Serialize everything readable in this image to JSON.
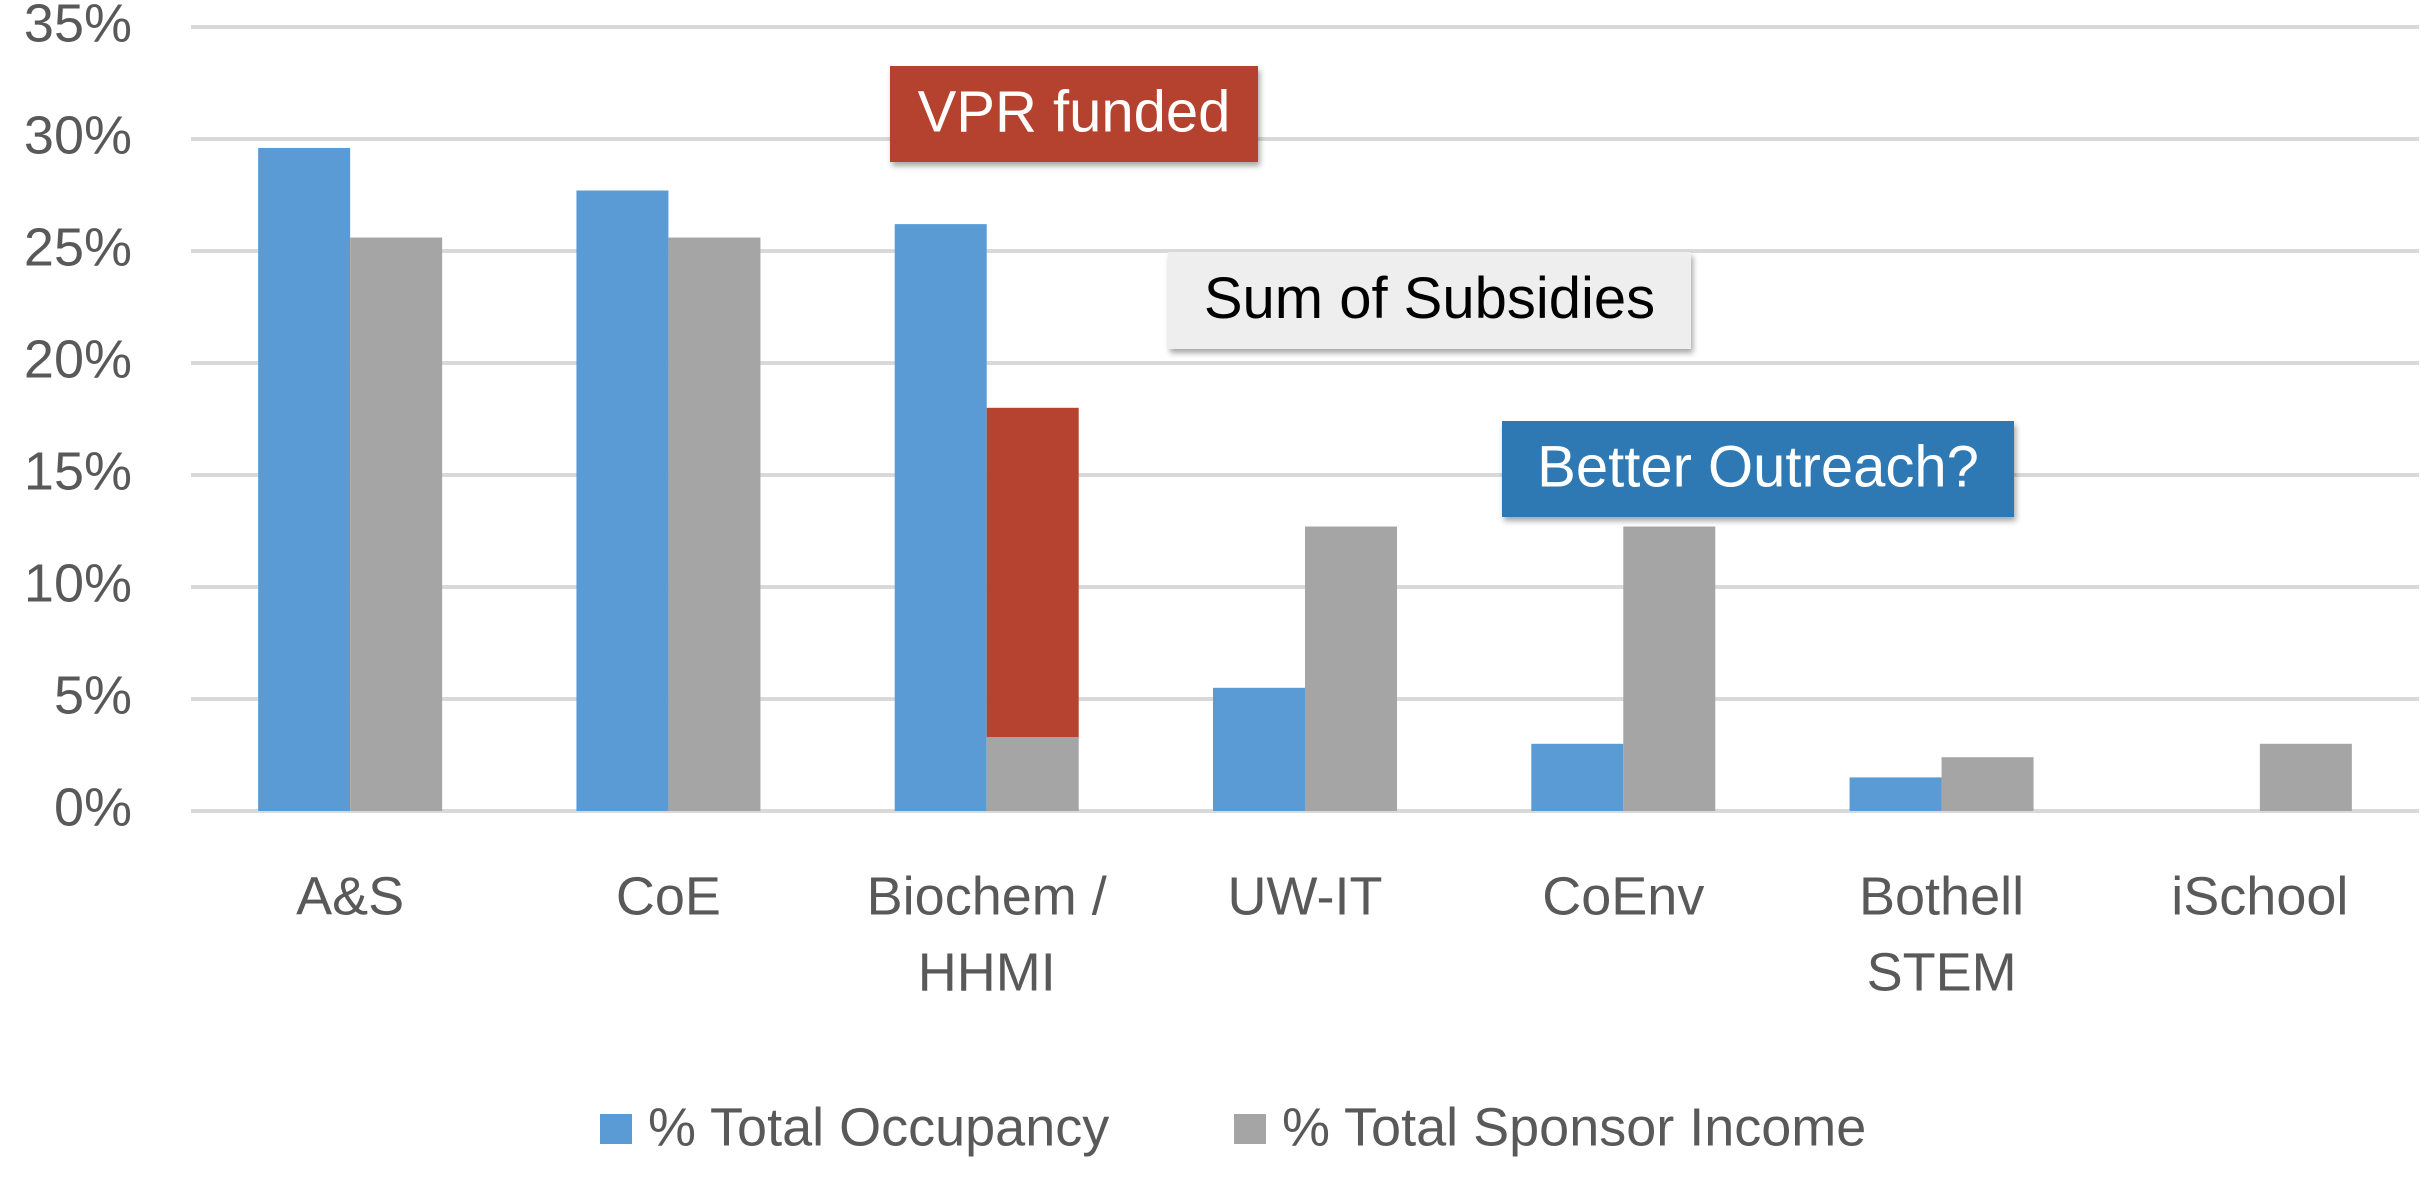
{
  "chart_data": {
    "type": "bar",
    "categories": [
      [
        "A&S"
      ],
      [
        "CoE"
      ],
      [
        "Biochem /",
        "HHMI"
      ],
      [
        "UW-IT"
      ],
      [
        "CoEnv"
      ],
      [
        "Bothell",
        "STEM"
      ],
      [
        "iSchool"
      ]
    ],
    "series": [
      {
        "name": "% Total Occupancy",
        "color": "#5b9bd5",
        "values": [
          29.6,
          27.7,
          26.2,
          5.5,
          3.0,
          1.5,
          null
        ]
      },
      {
        "name": "% Total Sponsor Income",
        "color": "#a5a5a5",
        "values": [
          25.6,
          25.6,
          3.3,
          12.7,
          12.7,
          2.4,
          3.0
        ]
      },
      {
        "color": "#b5432f",
        "stack_on": 1,
        "values": [
          null,
          null,
          14.7,
          null,
          null,
          null,
          null
        ]
      }
    ],
    "ylim": [
      0,
      35
    ],
    "yticks": [
      {
        "value": 0,
        "label": "0%"
      },
      {
        "value": 5,
        "label": "5%"
      },
      {
        "value": 10,
        "label": "10%"
      },
      {
        "value": 15,
        "label": "15%"
      },
      {
        "value": 20,
        "label": "20%"
      },
      {
        "value": 25,
        "label": "25%"
      },
      {
        "value": 30,
        "label": "30%"
      },
      {
        "value": 35,
        "label": "35%"
      }
    ],
    "grid": true,
    "legend": "bottom",
    "annotations": [
      {
        "text": "VPR funded",
        "color": "#b5432f",
        "text_color": "#ffffff"
      },
      {
        "text": "Sum of Subsidies",
        "color": "#eeeeee",
        "text_color": "#000000"
      },
      {
        "text": "Better Outreach?",
        "color": "#2e78b4",
        "text_color": "#ffffff"
      }
    ]
  }
}
